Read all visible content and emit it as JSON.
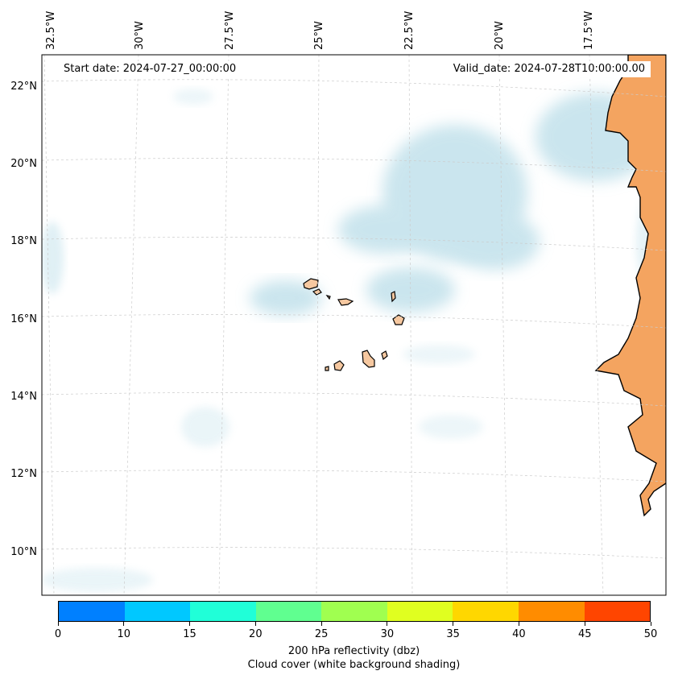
{
  "map": {
    "start_date": "Start date: 2024-07-27_00:00:00",
    "valid_date": "Valid_date: 2024-07-28T10:00:00.00",
    "lon_labels": [
      "32.5°W",
      "30°W",
      "27.5°W",
      "25°W",
      "22.5°W",
      "20°W",
      "17.5°W"
    ],
    "lat_labels": [
      "22°N",
      "20°N",
      "18°N",
      "16°N",
      "14°N",
      "12°N",
      "10°N"
    ],
    "colors": {
      "ocean": "#ffffff",
      "cloud_shading": "#b9dde8",
      "land_mainland": "#f4a460",
      "land_islands": "#f6c8a0",
      "coastline": "#000000",
      "gridline": "#cccccc"
    }
  },
  "colorbar": {
    "colors": [
      "#0080ff",
      "#00c8ff",
      "#20ffd8",
      "#60ff90",
      "#a0ff50",
      "#e0ff20",
      "#ffd700",
      "#ff8c00",
      "#ff4500"
    ],
    "ticks": [
      "0",
      "10",
      "15",
      "20",
      "25",
      "30",
      "35",
      "40",
      "45",
      "50"
    ],
    "label_line1": "200 hPa reflectivity (dbz)",
    "label_line2": "Cloud cover (white background shading)"
  }
}
